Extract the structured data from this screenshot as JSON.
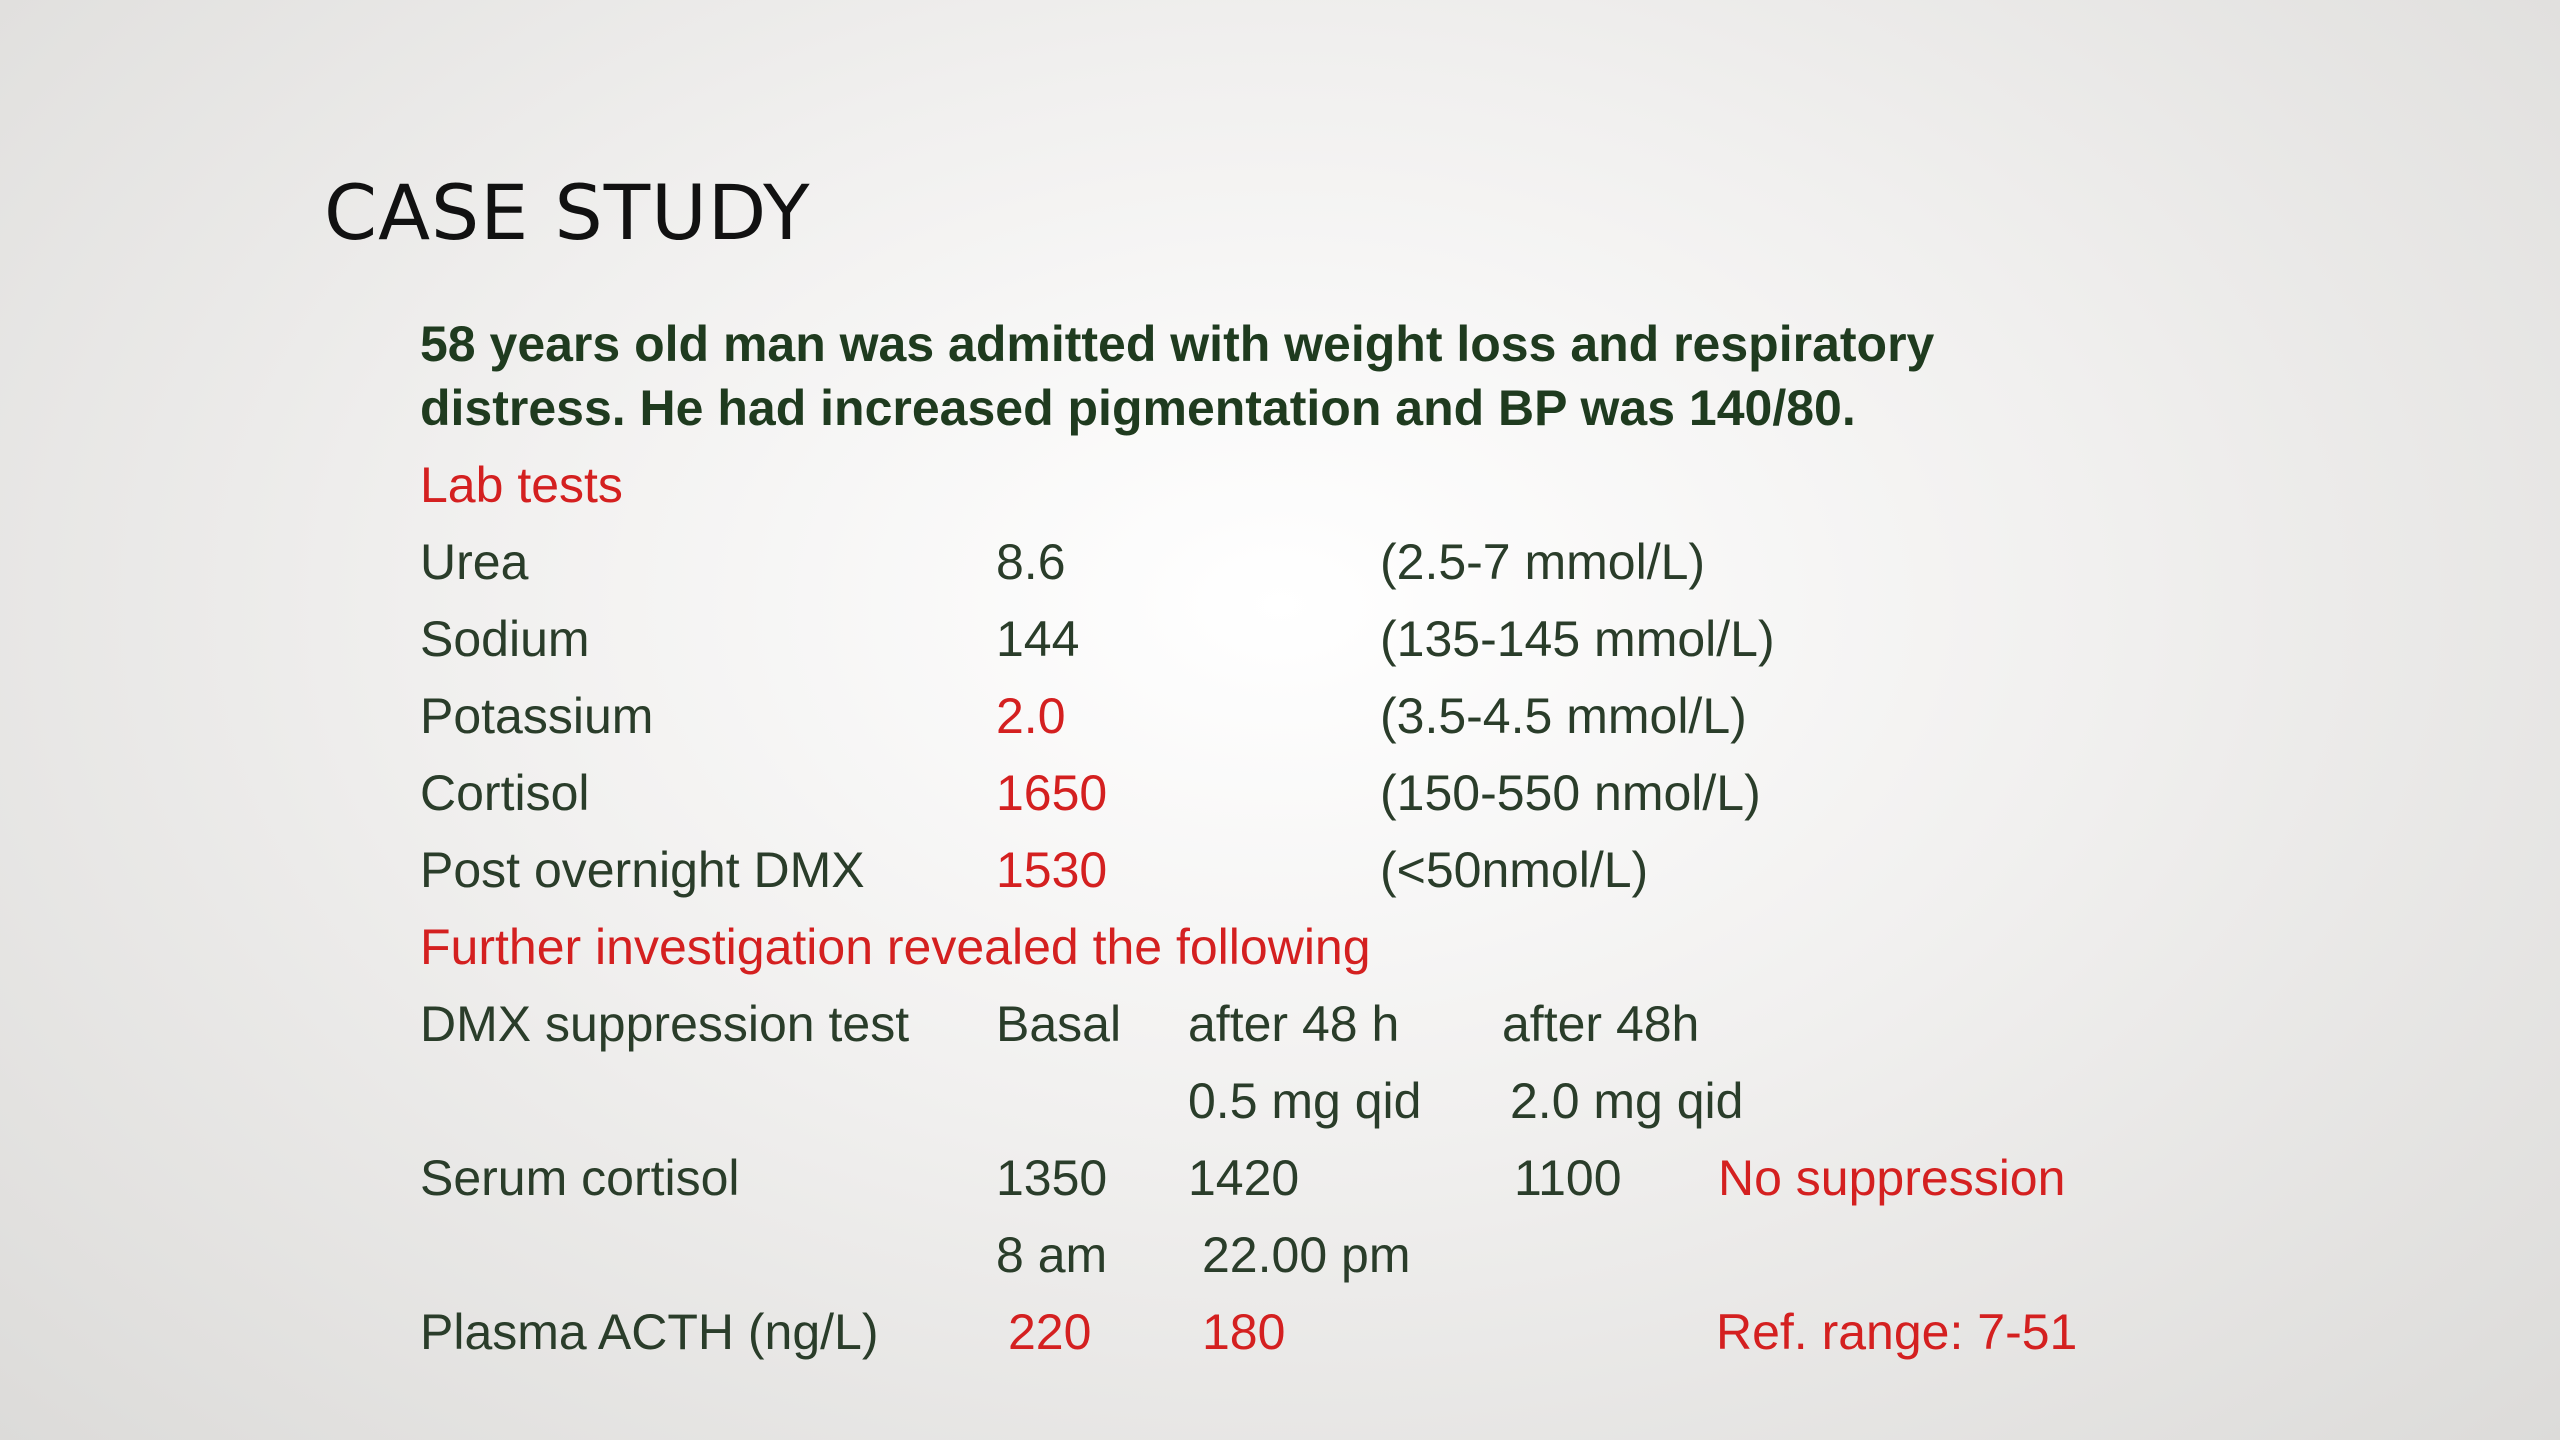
{
  "title": "CASE STUDY",
  "intro": {
    "line1": "58 years old man was admitted with weight loss and respiratory",
    "line2": "distress. He had increased pigmentation and BP was 140/80."
  },
  "lab_heading": "Lab tests",
  "lab_tests": [
    {
      "name": "Urea",
      "value": "8.6",
      "range": "(2.5-7 mmol/L)",
      "abnormal": false
    },
    {
      "name": "Sodium",
      "value": "144",
      "range": "(135-145 mmol/L)",
      "abnormal": false
    },
    {
      "name": "Potassium",
      "value": "2.0",
      "range": "(3.5-4.5 mmol/L)",
      "abnormal": true
    },
    {
      "name": "Cortisol",
      "value": "1650",
      "range": "(150-550 nmol/L)",
      "abnormal": true
    },
    {
      "name": "Post overnight DMX",
      "value": "1530",
      "range": "(<50nmol/L)",
      "abnormal": true
    }
  ],
  "further_heading": "Further investigation revealed the following",
  "dmx": {
    "label": "DMX suppression test",
    "basal": "Basal",
    "after48_1": "after 48 h",
    "after48_2": "after 48h",
    "dose1": "0.5 mg qid",
    "dose2": "2.0 mg qid"
  },
  "serum": {
    "label": "Serum cortisol",
    "basal": "1350",
    "v1": "1420",
    "v2": "1100",
    "note": "No suppression"
  },
  "times": {
    "t1": "8 am",
    "t2": "22.00 pm"
  },
  "acth": {
    "label": "Plasma ACTH (ng/L)",
    "v1": "220",
    "v2": "180",
    "ref": "Ref. range: 7-51"
  },
  "colors": {
    "title": "#111111",
    "body": "#2a3d2a",
    "intro": "#1f3b1f",
    "highlight": "#d42020"
  }
}
